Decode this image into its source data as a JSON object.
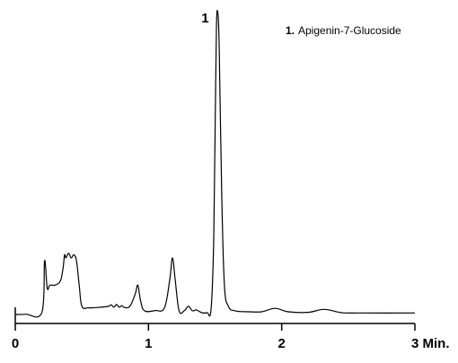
{
  "chart_data": {
    "type": "line",
    "title": "",
    "xlabel": "",
    "ylabel": "",
    "xlim": [
      0,
      3
    ],
    "ylim": [
      0,
      100
    ],
    "x_ticks": [
      {
        "value": 0,
        "label": "0"
      },
      {
        "value": 1,
        "label": "1"
      },
      {
        "value": 2,
        "label": "2"
      },
      {
        "value": 3,
        "label": "3 Min."
      }
    ],
    "grid": false,
    "line_color": "#000000",
    "series": [
      {
        "x": [
          0.0,
          0.08,
          0.2,
          0.22,
          0.24,
          0.26,
          0.3,
          0.34,
          0.36,
          0.37,
          0.38,
          0.4,
          0.42,
          0.44,
          0.46,
          0.48,
          0.5,
          0.55,
          0.62,
          0.7,
          0.72,
          0.74,
          0.76,
          0.78,
          0.8,
          0.82,
          0.86,
          0.9,
          0.92,
          0.94,
          0.97,
          1.05,
          1.12,
          1.16,
          1.18,
          1.2,
          1.23,
          1.27,
          1.3,
          1.33,
          1.36,
          1.4,
          1.44,
          1.47,
          1.49,
          1.5,
          1.51,
          1.52,
          1.53,
          1.55,
          1.57,
          1.6,
          1.65,
          1.75,
          1.85,
          1.95,
          2.05,
          2.2,
          2.32,
          2.45,
          2.6,
          3.0
        ],
        "values": [
          0.3,
          0.4,
          1.0,
          18.0,
          9.0,
          10.0,
          10.0,
          11.5,
          16.0,
          20.0,
          19.0,
          20.5,
          19.0,
          20.0,
          18.0,
          10.0,
          3.0,
          2.5,
          2.6,
          3.0,
          3.5,
          2.7,
          3.6,
          2.7,
          3.2,
          2.6,
          3.0,
          7.0,
          10.0,
          5.0,
          1.5,
          1.6,
          2.5,
          12.0,
          19.0,
          12.0,
          1.5,
          1.6,
          3.0,
          1.5,
          1.8,
          0.9,
          0.9,
          2.0,
          25.0,
          60.0,
          95.0,
          100.0,
          90.0,
          40.0,
          10.0,
          3.0,
          1.5,
          1.2,
          1.2,
          2.3,
          1.2,
          1.0,
          2.0,
          0.9,
          0.8,
          0.8
        ]
      }
    ],
    "peak_labels": [
      {
        "label": "1",
        "x": 1.52
      }
    ],
    "legend": {
      "position": "top-right",
      "entries": [
        {
          "number": "1.",
          "text": "Apigenin-7-Glucoside"
        }
      ]
    }
  }
}
